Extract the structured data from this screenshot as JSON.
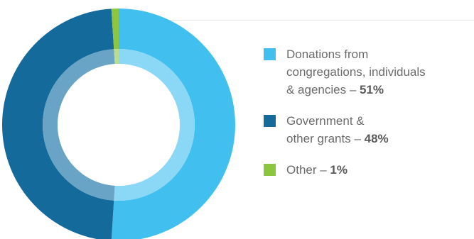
{
  "chart_data": {
    "type": "pie",
    "style": "donut",
    "slices": [
      {
        "label_lines": [
          "Donations from",
          "congregations, individuals",
          "& agencies – "
        ],
        "pct_text": "51%",
        "value": 51,
        "color": "#41c0f0",
        "inner_color": "#8ad8f5"
      },
      {
        "label_lines": [
          "Government &",
          "other grants – "
        ],
        "pct_text": "48%",
        "value": 48,
        "color": "#136a9b",
        "inner_color": "#69a4c6"
      },
      {
        "label_lines": [
          "Other – "
        ],
        "pct_text": "1%",
        "value": 1,
        "color": "#8cc63f",
        "inner_color": "#b9dd8a"
      }
    ],
    "legend_position": "right"
  }
}
